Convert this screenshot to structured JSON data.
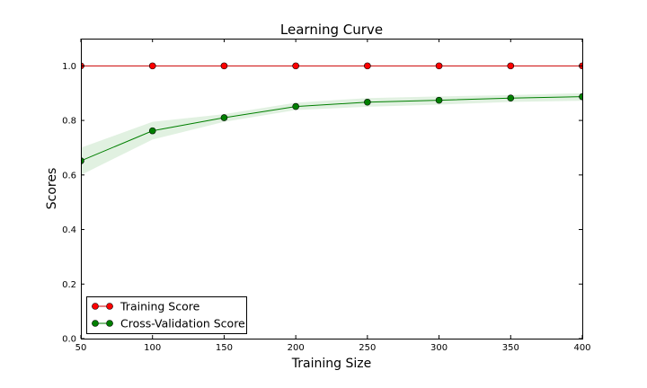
{
  "chart_data": {
    "type": "line",
    "title": "Learning Curve",
    "xlabel": "Training Size",
    "ylabel": "Scores",
    "xlim": [
      50,
      400
    ],
    "ylim": [
      0.0,
      1.1
    ],
    "x": [
      50,
      100,
      150,
      200,
      250,
      300,
      350,
      400
    ],
    "x_ticks": [
      50,
      100,
      150,
      200,
      250,
      300,
      350,
      400
    ],
    "x_tick_labels": [
      "50",
      "100",
      "150",
      "200",
      "250",
      "300",
      "350",
      "400"
    ],
    "y_ticks": [
      0.0,
      0.2,
      0.4,
      0.6,
      0.8,
      1.0
    ],
    "y_tick_labels": [
      "0.0",
      "0.2",
      "0.4",
      "0.6",
      "0.8",
      "1.0"
    ],
    "grid": false,
    "legend_position": "lower-left",
    "series": [
      {
        "name": "Training Score",
        "color": "#ff0000",
        "line_color": "#cc0000",
        "values": [
          1.0,
          1.0,
          1.0,
          1.0,
          1.0,
          1.0,
          1.0,
          1.0
        ],
        "band_lower": [
          1.0,
          1.0,
          1.0,
          1.0,
          1.0,
          1.0,
          1.0,
          1.0
        ],
        "band_upper": [
          1.0,
          1.0,
          1.0,
          1.0,
          1.0,
          1.0,
          1.0,
          1.0
        ]
      },
      {
        "name": "Cross-Validation Score",
        "color": "#007f00",
        "line_color": "#007f00",
        "band_color": "#c8e6c8",
        "values": [
          0.652,
          0.762,
          0.81,
          0.851,
          0.867,
          0.874,
          0.882,
          0.887
        ],
        "band_lower": [
          0.6,
          0.73,
          0.795,
          0.838,
          0.85,
          0.858,
          0.868,
          0.872
        ],
        "band_upper": [
          0.7,
          0.795,
          0.823,
          0.865,
          0.882,
          0.888,
          0.893,
          0.9
        ]
      }
    ]
  }
}
